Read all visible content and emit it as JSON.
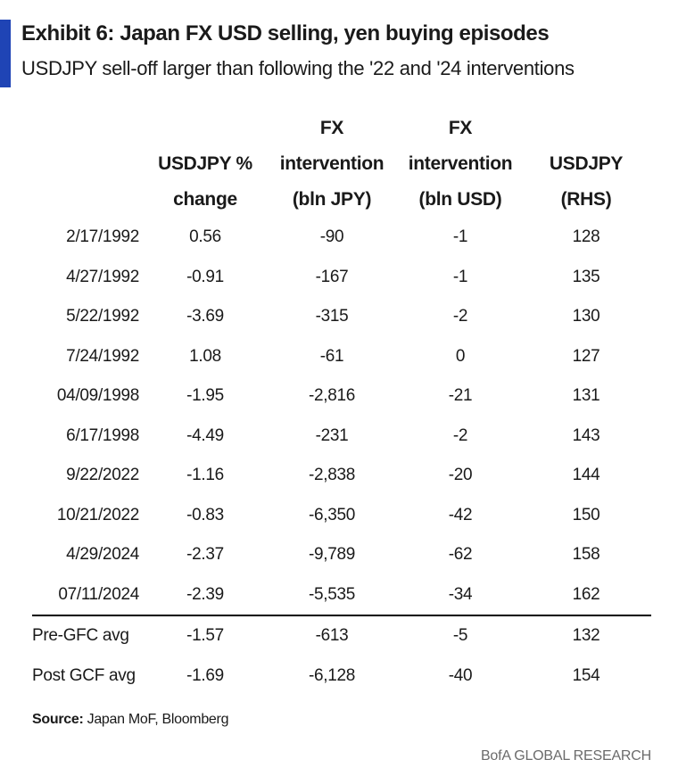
{
  "colors": {
    "accent": "#1f44b5"
  },
  "title": "Exhibit 6: Japan FX USD selling, yen buying episodes",
  "subtitle": "USDJPY sell-off larger than following the '22 and '24 interventions",
  "chart_data": {
    "type": "table",
    "columns": [
      "",
      "USDJPY % change",
      "FX intervention (bln JPY)",
      "FX intervention (bln USD)",
      "USDJPY (RHS)"
    ],
    "header_lines": [
      [],
      [
        "USDJPY %",
        "change"
      ],
      [
        "FX",
        "intervention",
        "(bln JPY)"
      ],
      [
        "FX",
        "intervention",
        "(bln USD)"
      ],
      [
        "USDJPY",
        "(RHS)"
      ]
    ],
    "rows": [
      [
        "2/17/1992",
        "0.56",
        "-90",
        "-1",
        "128"
      ],
      [
        "4/27/1992",
        "-0.91",
        "-167",
        "-1",
        "135"
      ],
      [
        "5/22/1992",
        "-3.69",
        "-315",
        "-2",
        "130"
      ],
      [
        "7/24/1992",
        "1.08",
        "-61",
        "0",
        "127"
      ],
      [
        "04/09/1998",
        "-1.95",
        "-2,816",
        "-21",
        "131"
      ],
      [
        "6/17/1998",
        "-4.49",
        "-231",
        "-2",
        "143"
      ],
      [
        "9/22/2022",
        "-1.16",
        "-2,838",
        "-20",
        "144"
      ],
      [
        "10/21/2022",
        "-0.83",
        "-6,350",
        "-42",
        "150"
      ],
      [
        "4/29/2024",
        "-2.37",
        "-9,789",
        "-62",
        "158"
      ],
      [
        "07/11/2024",
        "-2.39",
        "-5,535",
        "-34",
        "162"
      ]
    ],
    "summary_rows": [
      [
        "Pre-GFC avg",
        "-1.57",
        "-613",
        "-5",
        "132"
      ],
      [
        "Post GCF avg",
        "-1.69",
        "-6,128",
        "-40",
        "154"
      ]
    ]
  },
  "source": {
    "label": "Source:",
    "text": " Japan MoF, Bloomberg"
  },
  "brand": "BofA GLOBAL RESEARCH"
}
